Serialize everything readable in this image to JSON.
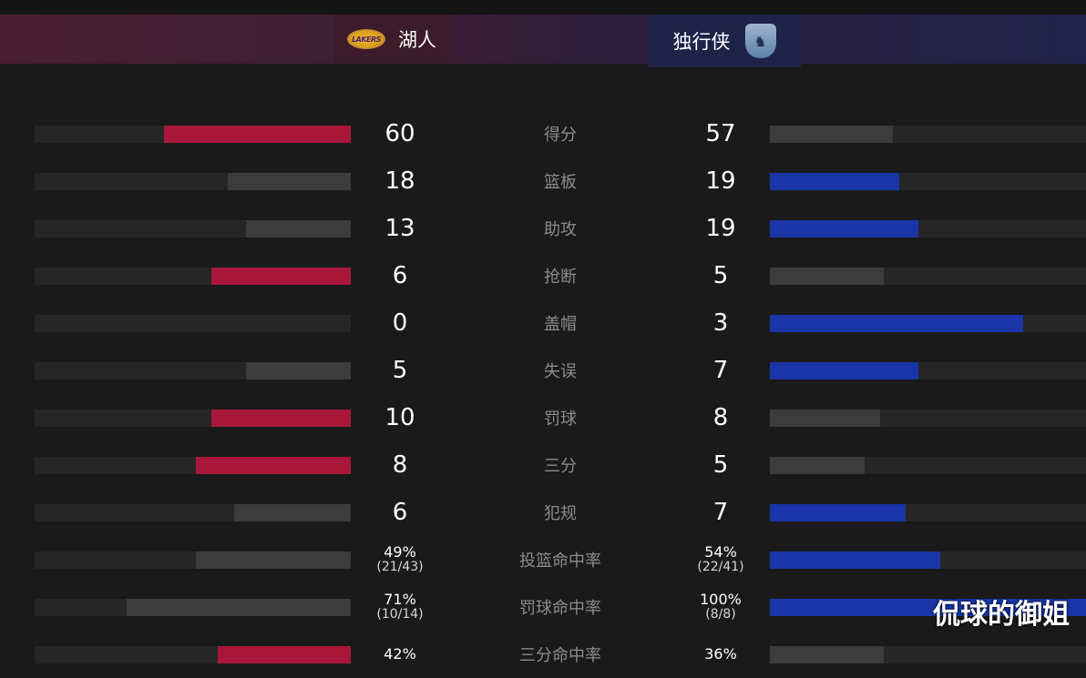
{
  "colors": {
    "home_lead": "#a8173a",
    "away_lead": "#1a35a8",
    "neutral": "#3c3c3c"
  },
  "header": {
    "home_team": "湖人",
    "home_logo_text": "LAKERS",
    "away_team": "独行侠",
    "away_logo_icon": "mavericks-logo-icon"
  },
  "stats": [
    {
      "label": "得分",
      "home": "60",
      "away": "57",
      "home_share": 0.59,
      "away_share": 0.39,
      "home_color": "home_lead",
      "away_color": "neutral"
    },
    {
      "label": "篮板",
      "home": "18",
      "away": "19",
      "home_share": 0.39,
      "away_share": 0.41,
      "home_color": "neutral",
      "away_color": "away_lead"
    },
    {
      "label": "助攻",
      "home": "13",
      "away": "19",
      "home_share": 0.33,
      "away_share": 0.47,
      "home_color": "neutral",
      "away_color": "away_lead"
    },
    {
      "label": "抢断",
      "home": "6",
      "away": "5",
      "home_share": 0.44,
      "away_share": 0.36,
      "home_color": "home_lead",
      "away_color": "neutral"
    },
    {
      "label": "盖帽",
      "home": "0",
      "away": "3",
      "home_share": 0.0,
      "away_share": 0.8,
      "home_color": "neutral",
      "away_color": "away_lead"
    },
    {
      "label": "失误",
      "home": "5",
      "away": "7",
      "home_share": 0.33,
      "away_share": 0.47,
      "home_color": "neutral",
      "away_color": "away_lead"
    },
    {
      "label": "罚球",
      "home": "10",
      "away": "8",
      "home_share": 0.44,
      "away_share": 0.35,
      "home_color": "home_lead",
      "away_color": "neutral"
    },
    {
      "label": "三分",
      "home": "8",
      "away": "5",
      "home_share": 0.49,
      "away_share": 0.3,
      "home_color": "home_lead",
      "away_color": "neutral"
    },
    {
      "label": "犯规",
      "home": "6",
      "away": "7",
      "home_share": 0.37,
      "away_share": 0.43,
      "home_color": "neutral",
      "away_color": "away_lead"
    },
    {
      "label": "投篮命中率",
      "home": "49%",
      "home_sub": "(21/43)",
      "away": "54%",
      "away_sub": "(22/41)",
      "home_share": 0.49,
      "away_share": 0.54,
      "home_color": "neutral",
      "away_color": "away_lead"
    },
    {
      "label": "罚球命中率",
      "home": "71%",
      "home_sub": "(10/14)",
      "away": "100%",
      "away_sub": "(8/8)",
      "home_share": 0.71,
      "away_share": 1.0,
      "home_color": "neutral",
      "away_color": "away_lead"
    },
    {
      "label": "三分命中率",
      "home": "42%",
      "home_sub": "",
      "away": "36%",
      "away_sub": "",
      "home_share": 0.42,
      "away_share": 0.36,
      "home_color": "home_lead",
      "away_color": "neutral"
    }
  ],
  "watermark": "侃球的御姐"
}
